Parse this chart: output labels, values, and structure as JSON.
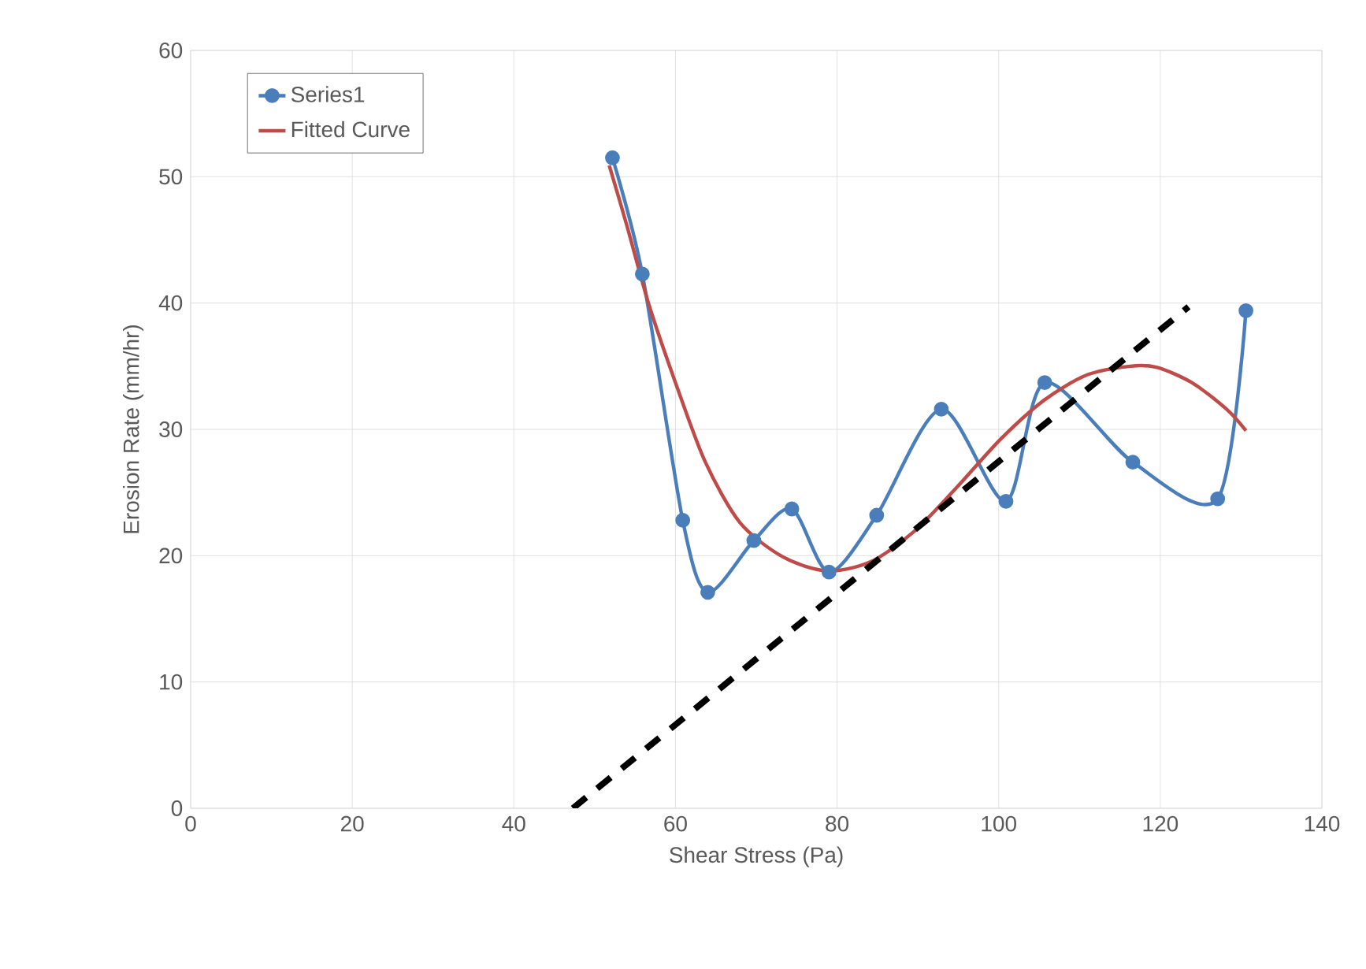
{
  "chart_data": {
    "type": "line",
    "xlabel": "Shear Stress (Pa)",
    "ylabel": "Erosion Rate (mm/hr)",
    "xlim": [
      0,
      140
    ],
    "ylim": [
      0,
      60
    ],
    "xticks": [
      0,
      20,
      40,
      60,
      80,
      100,
      120,
      140
    ],
    "yticks": [
      0,
      10,
      20,
      30,
      40,
      50,
      60
    ],
    "grid": true,
    "legend": "top left",
    "series": [
      {
        "name": "Series1",
        "color": "#4a7ebb",
        "marker": "circle",
        "line_style": "solid",
        "x": [
          52.2,
          55.9,
          60.9,
          64.0,
          69.7,
          74.4,
          79.0,
          84.9,
          92.9,
          100.9,
          105.7,
          116.6,
          127.1,
          130.6
        ],
        "values": [
          51.5,
          42.3,
          22.8,
          17.1,
          21.2,
          23.7,
          18.7,
          23.2,
          31.6,
          24.3,
          33.7,
          27.4,
          24.5,
          39.4
        ]
      },
      {
        "name": "Fitted Curve",
        "color": "#be4b48",
        "marker": "none",
        "line_style": "solid",
        "x": [
          51.8,
          54.0,
          56.7,
          60.0,
          63.7,
          68.0,
          73.3,
          78.7,
          84.1,
          89.5,
          94.8,
          100.2,
          105.6,
          110.9,
          116.3,
          119.6,
          123.9,
          128.2,
          130.6
        ],
        "values": [
          50.9,
          46.1,
          39.9,
          33.7,
          27.4,
          22.6,
          19.9,
          18.8,
          19.5,
          21.9,
          25.4,
          29.2,
          32.3,
          34.3,
          35.0,
          34.9,
          33.7,
          31.6,
          29.9
        ]
      },
      {
        "color": "#000000",
        "marker": "none",
        "line_style": "dashed",
        "x": [
          47.3,
          123.5
        ],
        "values": [
          0,
          39.7
        ]
      }
    ]
  }
}
